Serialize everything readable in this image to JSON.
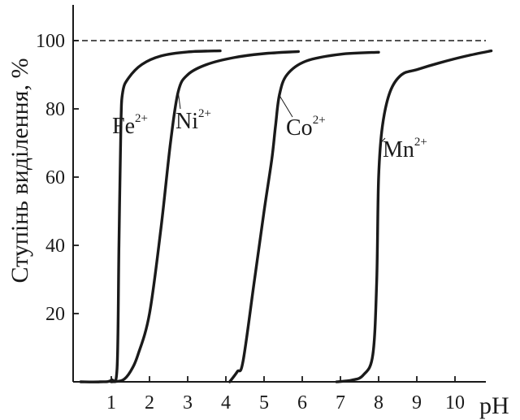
{
  "chart_data": {
    "type": "line",
    "title": "",
    "xlabel": "pH",
    "ylabel": "Ступінь виділення, %",
    "xlim": [
      0,
      11
    ],
    "ylim": [
      0,
      100
    ],
    "x_ticks": [
      "1",
      "2",
      "3",
      "4",
      "5",
      "6",
      "7",
      "8",
      "9",
      "10"
    ],
    "y_ticks": [
      "20",
      "40",
      "60",
      "80",
      "100"
    ],
    "reference_line": {
      "y": 100,
      "style": "dashed"
    },
    "grid": false,
    "series": [
      {
        "name": "Fe",
        "charge": "2+",
        "color": "#1a1a1a",
        "points": [
          [
            0.2,
            0
          ],
          [
            0.7,
            0
          ],
          [
            1.0,
            0.5
          ],
          [
            1.15,
            4
          ],
          [
            1.2,
            40
          ],
          [
            1.25,
            75
          ],
          [
            1.3,
            85
          ],
          [
            1.45,
            89
          ],
          [
            1.8,
            93
          ],
          [
            2.3,
            95.5
          ],
          [
            3.0,
            96.7
          ],
          [
            3.85,
            97
          ]
        ]
      },
      {
        "name": "Ni",
        "charge": "2+",
        "color": "#1a1a1a",
        "points": [
          [
            1.0,
            0
          ],
          [
            1.3,
            0.5
          ],
          [
            1.5,
            3
          ],
          [
            1.7,
            8
          ],
          [
            2.0,
            20
          ],
          [
            2.3,
            45
          ],
          [
            2.55,
            70
          ],
          [
            2.75,
            85
          ],
          [
            3.0,
            90
          ],
          [
            3.5,
            93
          ],
          [
            4.2,
            95
          ],
          [
            5.0,
            96.2
          ],
          [
            5.9,
            96.8
          ]
        ]
      },
      {
        "name": "Co",
        "charge": "2+",
        "color": "#1a1a1a",
        "points": [
          [
            4.1,
            0
          ],
          [
            4.3,
            3
          ],
          [
            4.45,
            6
          ],
          [
            4.75,
            30
          ],
          [
            5.0,
            50
          ],
          [
            5.2,
            65
          ],
          [
            5.3,
            75
          ],
          [
            5.4,
            84
          ],
          [
            5.6,
            90
          ],
          [
            6.1,
            94
          ],
          [
            7.0,
            96
          ],
          [
            8.0,
            96.6
          ]
        ]
      },
      {
        "name": "Mn",
        "charge": "2+",
        "color": "#1a1a1a",
        "points": [
          [
            6.9,
            0
          ],
          [
            7.3,
            0.5
          ],
          [
            7.6,
            2
          ],
          [
            7.85,
            8
          ],
          [
            7.95,
            30
          ],
          [
            8.0,
            60
          ],
          [
            8.1,
            75
          ],
          [
            8.3,
            85
          ],
          [
            8.6,
            90
          ],
          [
            9.0,
            91.5
          ],
          [
            9.6,
            93.5
          ],
          [
            10.3,
            95.5
          ],
          [
            10.95,
            97
          ]
        ]
      }
    ]
  }
}
